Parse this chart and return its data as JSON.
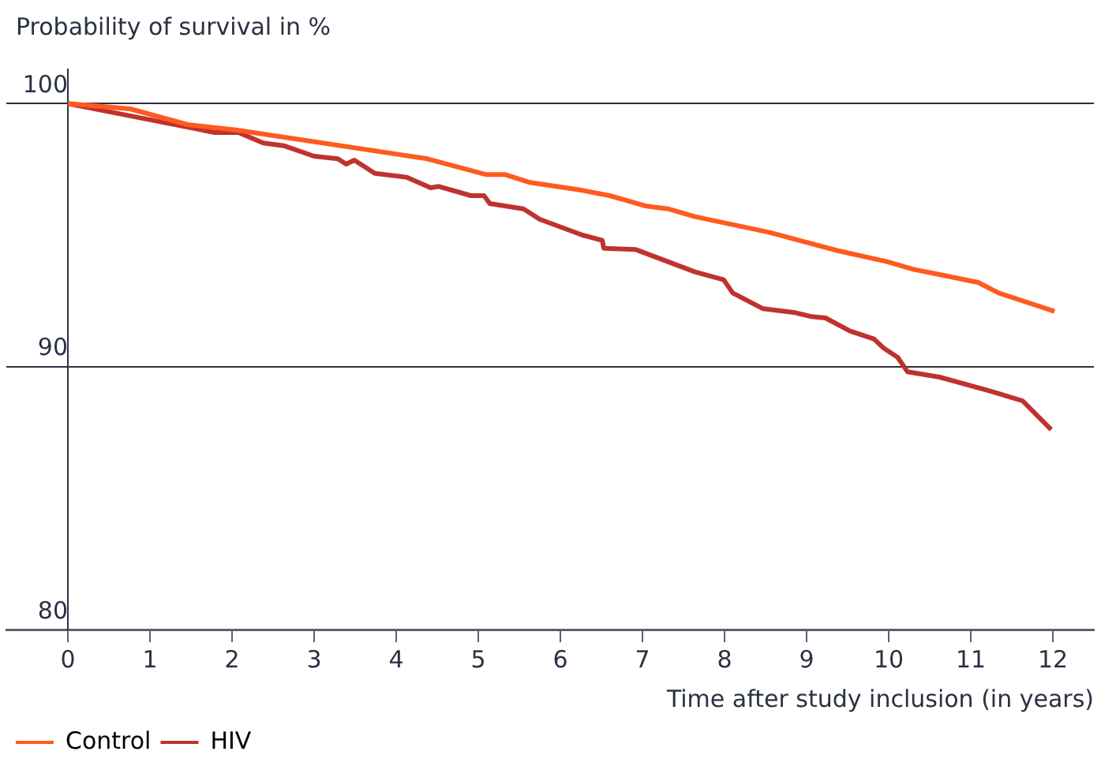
{
  "chart_data": {
    "type": "line",
    "ylabel": "Probability of survival in %",
    "xlabel": "Time after study inclusion (in years)",
    "xlim": [
      -0.75,
      12.5
    ],
    "xticks": [
      0,
      1,
      2,
      3,
      4,
      5,
      6,
      7,
      8,
      9,
      10,
      11,
      12
    ],
    "ylim": [
      80,
      101.3
    ],
    "yticks": [
      80,
      90,
      100
    ],
    "grid": "y",
    "legend": "bottom left",
    "marker": "none",
    "line_style": "solid",
    "series": [
      {
        "name": "Control",
        "color": "#ff5a1f",
        "x": [
          0,
          0.76,
          1.46,
          2.05,
          4.38,
          5.1,
          5.33,
          5.63,
          6.27,
          6.6,
          7.05,
          7.31,
          7.64,
          8.55,
          9.39,
          9.97,
          10.3,
          10.62,
          11.09,
          11.34,
          12.02
        ],
        "values": [
          100,
          99.8,
          99.2,
          99.0,
          97.9,
          97.3,
          97.3,
          97.0,
          96.7,
          96.5,
          96.1,
          96.0,
          95.7,
          95.1,
          94.4,
          94.0,
          93.7,
          93.5,
          93.2,
          92.8,
          92.1
        ]
      },
      {
        "name": "HIV",
        "color": "#c0322e",
        "x": [
          0,
          1.79,
          2.08,
          2.38,
          2.63,
          3.0,
          3.29,
          3.39,
          3.49,
          3.74,
          4.13,
          4.42,
          4.52,
          4.91,
          5.07,
          5.14,
          5.55,
          5.75,
          6.27,
          6.51,
          6.53,
          6.92,
          7.64,
          7.99,
          8.1,
          8.47,
          8.86,
          9.06,
          9.23,
          9.53,
          9.82,
          9.94,
          10.11,
          10.23,
          10.62,
          11.2,
          11.63,
          11.98
        ],
        "values": [
          100,
          98.9,
          98.9,
          98.5,
          98.4,
          98.0,
          97.9,
          97.7,
          97.85,
          97.35,
          97.2,
          96.8,
          96.85,
          96.5,
          96.5,
          96.2,
          96.0,
          95.6,
          95.0,
          94.8,
          94.5,
          94.45,
          93.6,
          93.3,
          92.8,
          92.2,
          92.05,
          91.9,
          91.85,
          91.35,
          91.05,
          90.7,
          90.35,
          89.8,
          89.6,
          89.1,
          88.7,
          87.6
        ]
      }
    ]
  }
}
